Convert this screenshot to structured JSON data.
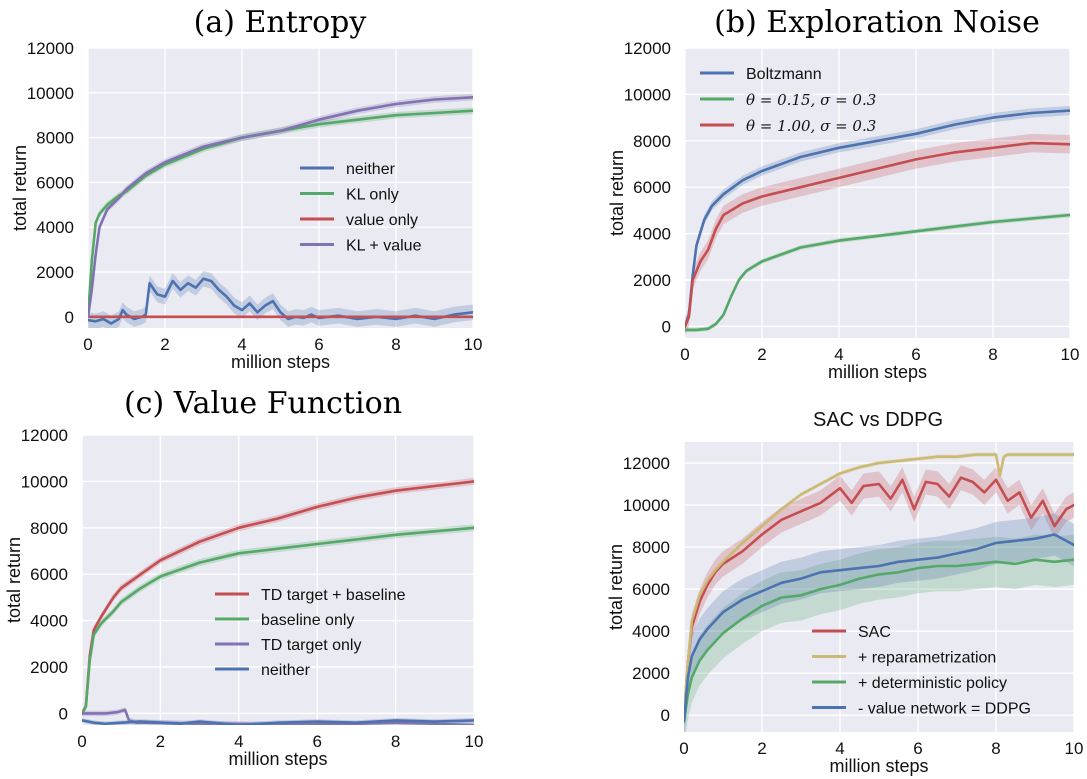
{
  "chart_data": [
    {
      "type": "line",
      "title": "(a) Entropy",
      "xlabel": "million steps",
      "ylabel": "total return",
      "xlim": [
        0,
        10
      ],
      "ylim": [
        -500,
        12000
      ],
      "xticks": [
        "0",
        "2",
        "4",
        "6",
        "8",
        "10"
      ],
      "yticks": [
        "0",
        "2000",
        "4000",
        "6000",
        "8000",
        "10000",
        "12000"
      ],
      "grid": true,
      "legend_position": "center-right",
      "series": [
        {
          "name": "neither",
          "color": "#4c72b0",
          "x": [
            0,
            0.2,
            0.4,
            0.6,
            0.8,
            0.9,
            1.0,
            1.2,
            1.4,
            1.5,
            1.6,
            1.8,
            2.0,
            2.2,
            2.4,
            2.6,
            2.8,
            3.0,
            3.2,
            3.4,
            3.6,
            3.8,
            4.0,
            4.2,
            4.4,
            4.6,
            4.8,
            5.0,
            5.2,
            5.4,
            5.6,
            5.8,
            6.0,
            6.5,
            7.0,
            7.5,
            8.0,
            8.5,
            9.0,
            9.5,
            10.0
          ],
          "y": [
            -150,
            -200,
            -100,
            -300,
            -100,
            300,
            100,
            -100,
            0,
            100,
            1500,
            1000,
            900,
            1600,
            1200,
            1500,
            1300,
            1700,
            1600,
            1200,
            900,
            500,
            300,
            600,
            200,
            500,
            700,
            200,
            -100,
            0,
            -50,
            100,
            -50,
            50,
            -100,
            0,
            -100,
            50,
            -100,
            100,
            200
          ],
          "band": 350
        },
        {
          "name": "KL only",
          "color": "#55a868",
          "x": [
            0,
            0.1,
            0.2,
            0.3,
            0.5,
            0.8,
            1.0,
            1.5,
            2,
            3,
            4,
            5,
            6,
            7,
            8,
            9,
            10
          ],
          "y": [
            0,
            2500,
            4200,
            4600,
            5000,
            5400,
            5600,
            6300,
            6800,
            7500,
            8000,
            8300,
            8600,
            8800,
            9000,
            9100,
            9200
          ],
          "band": 150
        },
        {
          "name": "value only",
          "color": "#c44e52",
          "x": [
            0,
            2,
            4,
            6,
            8,
            10
          ],
          "y": [
            0,
            0,
            0,
            0,
            0,
            0
          ],
          "band": 20
        },
        {
          "name": "KL + value",
          "color": "#8172b2",
          "x": [
            0,
            0.1,
            0.2,
            0.3,
            0.5,
            0.8,
            1.0,
            1.5,
            2,
            3,
            4,
            5,
            6,
            7,
            8,
            9,
            10
          ],
          "y": [
            0,
            1200,
            2800,
            4000,
            4800,
            5300,
            5700,
            6400,
            6900,
            7600,
            8000,
            8300,
            8800,
            9200,
            9500,
            9700,
            9800
          ],
          "band": 150
        }
      ]
    },
    {
      "type": "line",
      "title": "(b) Exploration Noise",
      "xlabel": "million steps",
      "ylabel": "total return",
      "xlim": [
        0,
        10
      ],
      "ylim": [
        -500,
        12000
      ],
      "xticks": [
        "0",
        "2",
        "4",
        "6",
        "8",
        "10"
      ],
      "yticks": [
        "0",
        "2000",
        "4000",
        "6000",
        "8000",
        "10000",
        "12000"
      ],
      "grid": true,
      "legend_position": "top-left",
      "legend_entries": [
        {
          "label": "Boltzmann",
          "math": false
        },
        {
          "label": "θ = 0.15,  σ = 0.3",
          "math": true
        },
        {
          "label": "θ = 1.00,  σ = 0.3",
          "math": true
        }
      ],
      "series": [
        {
          "name": "Boltzmann",
          "color": "#4c72b0",
          "x": [
            0,
            0.1,
            0.2,
            0.3,
            0.5,
            0.7,
            1.0,
            1.5,
            2,
            3,
            4,
            5,
            6,
            7,
            8,
            9,
            10
          ],
          "y": [
            0,
            500,
            2200,
            3500,
            4600,
            5200,
            5700,
            6300,
            6700,
            7300,
            7700,
            8000,
            8300,
            8700,
            9000,
            9200,
            9300
          ],
          "band": 200
        },
        {
          "name": "θ = 0.15,  σ = 0.3",
          "color": "#55a868",
          "x": [
            0,
            0.3,
            0.6,
            0.8,
            1.0,
            1.2,
            1.4,
            1.6,
            2,
            3,
            4,
            5,
            6,
            7,
            8,
            9,
            10
          ],
          "y": [
            -150,
            -150,
            -100,
            100,
            500,
            1300,
            2000,
            2400,
            2800,
            3400,
            3700,
            3900,
            4100,
            4300,
            4500,
            4650,
            4800
          ],
          "band": 100
        },
        {
          "name": "θ = 1.00,  σ = 0.3",
          "color": "#c44e52",
          "x": [
            0,
            0.1,
            0.2,
            0.4,
            0.6,
            0.8,
            1.0,
            1.5,
            2,
            3,
            4,
            5,
            6,
            7,
            8,
            9,
            10
          ],
          "y": [
            0,
            400,
            2000,
            2800,
            3300,
            4200,
            4800,
            5300,
            5600,
            6000,
            6400,
            6800,
            7200,
            7500,
            7700,
            7900,
            7850
          ],
          "band": 400
        }
      ]
    },
    {
      "type": "line",
      "title": "(c) Value Function",
      "xlabel": "million steps",
      "ylabel": "total return",
      "xlim": [
        0,
        10
      ],
      "ylim": [
        -500,
        12000
      ],
      "xticks": [
        "0",
        "2",
        "4",
        "6",
        "8",
        "10"
      ],
      "yticks": [
        "0",
        "2000",
        "4000",
        "6000",
        "8000",
        "10000",
        "12000"
      ],
      "grid": true,
      "legend_position": "center-right",
      "series": [
        {
          "name": "TD target + baseline",
          "color": "#c44e52",
          "x": [
            0,
            0.1,
            0.2,
            0.3,
            0.5,
            0.8,
            1.0,
            1.5,
            2,
            3,
            4,
            5,
            6,
            7,
            8,
            9,
            10
          ],
          "y": [
            0,
            300,
            2500,
            3600,
            4200,
            5000,
            5400,
            6000,
            6600,
            7400,
            8000,
            8400,
            8900,
            9300,
            9600,
            9800,
            10000
          ],
          "band": 150
        },
        {
          "name": "baseline only",
          "color": "#55a868",
          "x": [
            0,
            0.1,
            0.2,
            0.3,
            0.5,
            0.8,
            1.0,
            1.5,
            2,
            3,
            4,
            5,
            6,
            7,
            8,
            9,
            10
          ],
          "y": [
            0,
            300,
            2300,
            3400,
            3900,
            4400,
            4800,
            5400,
            5900,
            6500,
            6900,
            7100,
            7300,
            7500,
            7700,
            7850,
            8000
          ],
          "band": 150
        },
        {
          "name": "TD target only",
          "color": "#8172b2",
          "x": [
            0,
            0.3,
            0.6,
            0.9,
            1.1,
            1.2,
            1.4,
            2,
            3,
            4,
            5,
            6,
            7,
            8,
            9,
            10
          ],
          "y": [
            0,
            0,
            0,
            50,
            150,
            -300,
            -400,
            -400,
            -450,
            -450,
            -500,
            -450,
            -450,
            -400,
            -450,
            -500
          ],
          "band": 120
        },
        {
          "name": "neither",
          "color": "#4c72b0",
          "x": [
            0,
            0.3,
            0.6,
            1.0,
            1.5,
            2,
            2.5,
            3,
            4,
            5,
            6,
            7,
            8,
            9,
            10
          ],
          "y": [
            -300,
            -400,
            -450,
            -400,
            -350,
            -400,
            -450,
            -350,
            -500,
            -400,
            -350,
            -400,
            -300,
            -350,
            -300
          ],
          "band": 100
        }
      ]
    },
    {
      "type": "line",
      "title": "SAC vs DDPG",
      "xlabel": "million steps",
      "ylabel": "total return",
      "xlim": [
        0,
        10
      ],
      "ylim": [
        -800,
        13000
      ],
      "xticks": [
        "0",
        "2",
        "4",
        "6",
        "8",
        "10"
      ],
      "yticks": [
        "0",
        "2000",
        "4000",
        "6000",
        "8000",
        "10000",
        "12000"
      ],
      "grid": true,
      "legend_position": "lower-right",
      "series": [
        {
          "name": "SAC",
          "color": "#c44e52",
          "x": [
            0,
            0.1,
            0.2,
            0.4,
            0.6,
            0.8,
            1.0,
            1.5,
            2,
            2.5,
            3,
            3.5,
            4,
            4.3,
            4.6,
            5,
            5.3,
            5.6,
            5.9,
            6.2,
            6.5,
            6.8,
            7.1,
            7.4,
            7.7,
            8,
            8.3,
            8.6,
            8.9,
            9.2,
            9.5,
            9.8,
            10
          ],
          "y": [
            0,
            2500,
            4200,
            5400,
            6200,
            6800,
            7200,
            7800,
            8600,
            9300,
            9700,
            10100,
            10800,
            10100,
            10900,
            11000,
            10300,
            11200,
            9800,
            11100,
            11000,
            10400,
            11300,
            11100,
            10600,
            11200,
            10200,
            10600,
            9400,
            10200,
            9000,
            9800,
            10000
          ],
          "band": 600
        },
        {
          "name": "+ reparametrization",
          "color": "#ccb974",
          "x": [
            0,
            0.1,
            0.2,
            0.4,
            0.6,
            0.8,
            1.0,
            1.5,
            2,
            2.5,
            3,
            3.5,
            4,
            4.5,
            5,
            5.5,
            6,
            6.5,
            7,
            7.5,
            8,
            8.1,
            8.2,
            8.3,
            8.5,
            9,
            9.5,
            10
          ],
          "y": [
            0,
            2500,
            4500,
            5700,
            6400,
            6900,
            7300,
            8200,
            9000,
            9800,
            10500,
            11000,
            11500,
            11800,
            12000,
            12100,
            12200,
            12300,
            12300,
            12400,
            12400,
            11400,
            12300,
            12400,
            12400,
            12400,
            12400,
            12400
          ],
          "band": 100
        },
        {
          "name": "+ deterministic policy",
          "color": "#55a868",
          "x": [
            0,
            0.1,
            0.2,
            0.4,
            0.6,
            0.8,
            1.0,
            1.5,
            2,
            2.5,
            3,
            3.5,
            4,
            4.5,
            5,
            5.5,
            6,
            6.5,
            7,
            7.5,
            8,
            8.5,
            9,
            9.5,
            10
          ],
          "y": [
            -300,
            1000,
            1800,
            2600,
            3100,
            3500,
            3900,
            4600,
            5200,
            5600,
            5700,
            6000,
            6200,
            6500,
            6700,
            6800,
            7000,
            7100,
            7100,
            7200,
            7300,
            7200,
            7400,
            7300,
            7400
          ],
          "band": 1200
        },
        {
          "name": "- value network = DDPG",
          "color": "#4c72b0",
          "x": [
            0,
            0.1,
            0.2,
            0.4,
            0.6,
            0.8,
            1.0,
            1.5,
            2,
            2.5,
            3,
            3.5,
            4,
            4.5,
            5,
            5.5,
            6,
            6.5,
            7,
            7.5,
            8,
            8.5,
            9,
            9.5,
            10
          ],
          "y": [
            -300,
            1800,
            2800,
            3600,
            4100,
            4500,
            4900,
            5500,
            5900,
            6300,
            6500,
            6800,
            6900,
            7000,
            7100,
            7300,
            7400,
            7500,
            7700,
            7900,
            8200,
            8300,
            8400,
            8600,
            8100
          ],
          "band": 1000
        }
      ]
    }
  ]
}
